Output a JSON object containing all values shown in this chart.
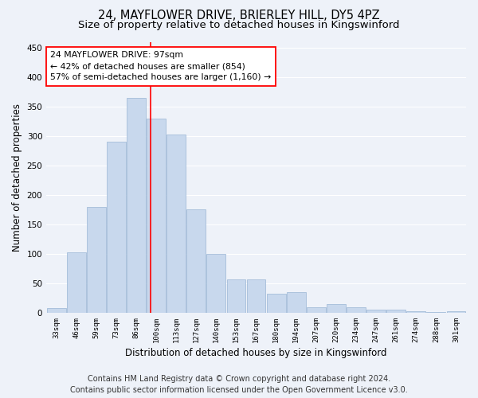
{
  "title1": "24, MAYFLOWER DRIVE, BRIERLEY HILL, DY5 4PZ",
  "title2": "Size of property relative to detached houses in Kingswinford",
  "xlabel": "Distribution of detached houses by size in Kingswinford",
  "ylabel": "Number of detached properties",
  "footer1": "Contains HM Land Registry data © Crown copyright and database right 2024.",
  "footer2": "Contains public sector information licensed under the Open Government Licence v3.0.",
  "categories": [
    "33sqm",
    "46sqm",
    "59sqm",
    "73sqm",
    "86sqm",
    "100sqm",
    "113sqm",
    "127sqm",
    "140sqm",
    "153sqm",
    "167sqm",
    "180sqm",
    "194sqm",
    "207sqm",
    "220sqm",
    "234sqm",
    "247sqm",
    "261sqm",
    "274sqm",
    "288sqm",
    "301sqm"
  ],
  "values": [
    8,
    102,
    180,
    290,
    365,
    330,
    303,
    175,
    100,
    57,
    57,
    33,
    35,
    10,
    15,
    10,
    5,
    5,
    3,
    1,
    3
  ],
  "bar_color": "#c8d8ed",
  "bar_edge_color": "#9ab5d4",
  "red_line_x": 4.72,
  "annotation_text_line1": "24 MAYFLOWER DRIVE: 97sqm",
  "annotation_text_line2": "← 42% of detached houses are smaller (854)",
  "annotation_text_line3": "57% of semi-detached houses are larger (1,160) →",
  "ylim": [
    0,
    460
  ],
  "yticks": [
    0,
    50,
    100,
    150,
    200,
    250,
    300,
    350,
    400,
    450
  ],
  "bg_color": "#eef2f9",
  "grid_color": "#ffffff",
  "title1_fontsize": 10.5,
  "title2_fontsize": 9.5,
  "xlabel_fontsize": 8.5,
  "ylabel_fontsize": 8.5,
  "tick_fontsize": 6.5,
  "annotation_fontsize": 7.8,
  "footer_fontsize": 7.0
}
